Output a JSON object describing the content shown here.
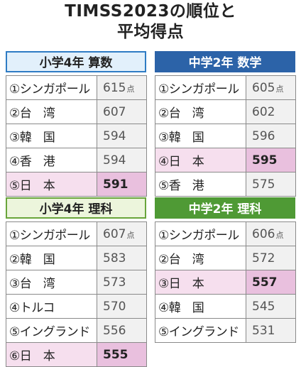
{
  "title_line1": "TIMSS2023の順位と",
  "title_line2": "平均得点",
  "colors": {
    "elem_math_head_bg": "#e2f0fb",
    "elem_math_head_border": "#2f7cc4",
    "jh_math_head_bg": "#2c63a8",
    "elem_sci_head_bg": "#ecf5dc",
    "elem_sci_head_border": "#69a53b",
    "jh_sci_head_bg": "#4f9a35",
    "japan_highlight": "#e9c0de"
  },
  "chart_data": [
    {
      "type": "table",
      "title": "小学4年 算数",
      "unit": "点",
      "rows": [
        {
          "rank": "①",
          "name": "シンガポール",
          "score": "615",
          "japan": false
        },
        {
          "rank": "②",
          "name": "台　湾",
          "score": "607",
          "japan": false
        },
        {
          "rank": "③",
          "name": "韓　国",
          "score": "594",
          "japan": false
        },
        {
          "rank": "④",
          "name": "香　港",
          "score": "594",
          "japan": false
        },
        {
          "rank": "⑤",
          "name": "日　本",
          "score": "591",
          "japan": true
        }
      ]
    },
    {
      "type": "table",
      "title": "中学2年 数学",
      "unit": "点",
      "rows": [
        {
          "rank": "①",
          "name": "シンガポール",
          "score": "605",
          "japan": false
        },
        {
          "rank": "②",
          "name": "台　湾",
          "score": "602",
          "japan": false
        },
        {
          "rank": "③",
          "name": "韓　国",
          "score": "596",
          "japan": false
        },
        {
          "rank": "④",
          "name": "日　本",
          "score": "595",
          "japan": true
        },
        {
          "rank": "⑤",
          "name": "香　港",
          "score": "575",
          "japan": false
        }
      ]
    },
    {
      "type": "table",
      "title": "小学4年 理科",
      "unit": "点",
      "rows": [
        {
          "rank": "①",
          "name": "シンガポール",
          "score": "607",
          "japan": false
        },
        {
          "rank": "②",
          "name": "韓　国",
          "score": "583",
          "japan": false
        },
        {
          "rank": "③",
          "name": "台　湾",
          "score": "573",
          "japan": false
        },
        {
          "rank": "④",
          "name": "トルコ",
          "score": "570",
          "japan": false
        },
        {
          "rank": "⑤",
          "name": "イングランド",
          "score": "556",
          "japan": false
        },
        {
          "rank": "⑥",
          "name": "日　本",
          "score": "555",
          "japan": true
        }
      ]
    },
    {
      "type": "table",
      "title": "中学2年 理科",
      "unit": "点",
      "rows": [
        {
          "rank": "①",
          "name": "シンガポール",
          "score": "606",
          "japan": false
        },
        {
          "rank": "②",
          "name": "台　湾",
          "score": "572",
          "japan": false
        },
        {
          "rank": "③",
          "name": "日　本",
          "score": "557",
          "japan": true
        },
        {
          "rank": "④",
          "name": "韓　国",
          "score": "545",
          "japan": false
        },
        {
          "rank": "⑤",
          "name": "イングランド",
          "score": "531",
          "japan": false
        }
      ]
    }
  ]
}
